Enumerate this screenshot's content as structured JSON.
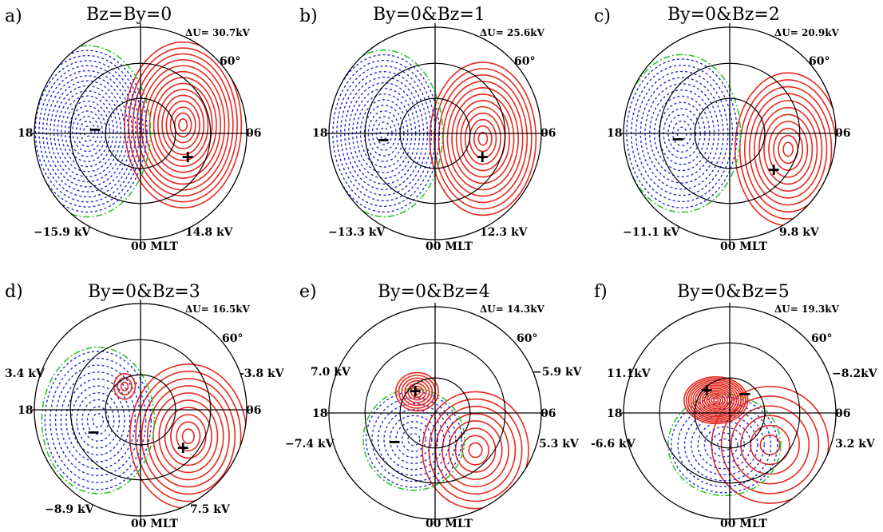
{
  "figure": {
    "colors": {
      "positive": "#e8281e",
      "negative": "#1f2bd6",
      "boundary": "#2ec42e",
      "axes": "#000000"
    },
    "common": {
      "lat_label": "60°",
      "mlt_18": "18",
      "mlt_06": "06",
      "mlt_00": "00 MLT"
    },
    "panels": [
      {
        "letter": "a)",
        "title": "Bz=By=0",
        "delta_u": "ΔU= 30.7kV",
        "left_value": "",
        "right_value": "",
        "min_value": "−15.9 kV",
        "max_value": "14.8 kV",
        "plus_sign": "+",
        "minus_sign": "−"
      },
      {
        "letter": "b)",
        "title": "By=0&Bz=1",
        "delta_u": "ΔU= 25.6kV",
        "left_value": "",
        "right_value": "",
        "min_value": "−13.3 kV",
        "max_value": "12.3 kV",
        "plus_sign": "+",
        "minus_sign": "−"
      },
      {
        "letter": "c)",
        "title": "By=0&Bz=2",
        "delta_u": "ΔU= 20.9kV",
        "left_value": "",
        "right_value": "",
        "min_value": "−11.1 kV",
        "max_value": "9.8 kV",
        "plus_sign": "+",
        "minus_sign": "−"
      },
      {
        "letter": "d)",
        "title": "By=0&Bz=3",
        "delta_u": "ΔU= 16.5kV",
        "left_value": "3.4 kV",
        "right_value": "-3.8 kV",
        "min_value": "−8.9 kV",
        "max_value": "7.5 kV",
        "plus_sign": "+",
        "minus_sign": "−"
      },
      {
        "letter": "e)",
        "title": "By=0&Bz=4",
        "delta_u": "ΔU= 14.3kV",
        "left_value": "7.0 kV",
        "right_value": "−5.9 kV",
        "min_value": "−7.4 kV",
        "max_value": "5.3 kV",
        "plus_sign": "+",
        "minus_sign": "−"
      },
      {
        "letter": "f)",
        "title": "By=0&Bz=5",
        "delta_u": "ΔU= 19.3kV",
        "left_value": "11.1kV",
        "right_value": "−8.2kV",
        "min_value": "-6.6 kV",
        "max_value": "3.2 kV",
        "plus_sign": "+",
        "minus_sign": "−"
      }
    ]
  }
}
